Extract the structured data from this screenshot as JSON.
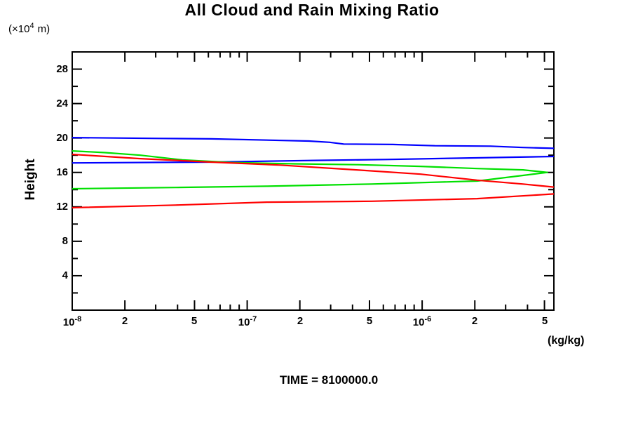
{
  "title": "All Cloud and Rain Mixing Ratio",
  "y_axis": {
    "label": "Height",
    "unit_prefix": "(×10",
    "unit_exp": "4",
    "unit_suffix": "m)",
    "labels": [
      {
        "text": "4",
        "value": 4
      },
      {
        "text": "8",
        "value": 8
      },
      {
        "text": "12",
        "value": 12
      },
      {
        "text": "16",
        "value": 16
      },
      {
        "text": "20",
        "value": 20
      },
      {
        "text": "24",
        "value": 24
      },
      {
        "text": "28",
        "value": 28
      }
    ]
  },
  "x_axis": {
    "unit": "(kg/kg)",
    "labels": [
      {
        "text": "10",
        "exp": "-8",
        "value": 1e-08
      },
      {
        "text": "2",
        "exp": "",
        "value": 2e-08
      },
      {
        "text": "5",
        "exp": "",
        "value": 5e-08
      },
      {
        "text": "10",
        "exp": "-7",
        "value": 1e-07
      },
      {
        "text": "2",
        "exp": "",
        "value": 2e-07
      },
      {
        "text": "5",
        "exp": "",
        "value": 5e-07
      },
      {
        "text": "10",
        "exp": "-6",
        "value": 1e-06
      },
      {
        "text": "2",
        "exp": "",
        "value": 2e-06
      },
      {
        "text": "5",
        "exp": "",
        "value": 5e-06
      }
    ]
  },
  "footer": {
    "time_label": "TIME = 8100000.0"
  },
  "chart_data": {
    "type": "line",
    "title": "All Cloud and Rain Mixing Ratio",
    "xlabel": "(kg/kg)",
    "ylabel": "Height (×10^4 m)",
    "x_scale": "log",
    "xlim": [
      1e-08,
      5.66e-06
    ],
    "ylim": [
      0,
      30
    ],
    "grid": false,
    "legend": "none",
    "annotation": "TIME = 8100000.0",
    "x_ticks_labeled": [
      1e-08,
      2e-08,
      5e-08,
      1e-07,
      2e-07,
      5e-07,
      1e-06,
      2e-06,
      5e-06
    ],
    "x_ticks_all": [
      1e-08,
      2e-08,
      3e-08,
      4e-08,
      5e-08,
      6e-08,
      7e-08,
      8e-08,
      9e-08,
      1e-07,
      2e-07,
      3e-07,
      4e-07,
      5e-07,
      6e-07,
      7e-07,
      8e-07,
      9e-07,
      1e-06,
      2e-06,
      3e-06,
      4e-06,
      5e-06
    ],
    "y_ticks_labeled": [
      4,
      8,
      12,
      16,
      20,
      24,
      28
    ],
    "y_ticks_all": [
      2,
      4,
      6,
      8,
      10,
      12,
      14,
      16,
      18,
      20,
      22,
      24,
      26,
      28
    ],
    "series": [
      {
        "name": "blue-upper-branch",
        "color": "#0000ff",
        "points": [
          [
            1e-08,
            20.05
          ],
          [
            3.2e-08,
            19.95
          ],
          [
            6.2e-08,
            19.9
          ],
          [
            2.25e-07,
            19.65
          ],
          [
            2.96e-07,
            19.5
          ],
          [
            3.56e-07,
            19.3
          ],
          [
            6.8e-07,
            19.25
          ],
          [
            1.18e-06,
            19.1
          ],
          [
            2.46e-06,
            19.05
          ],
          [
            3.77e-06,
            18.9
          ],
          [
            5.66e-06,
            18.8
          ]
        ]
      },
      {
        "name": "blue-lower-branch",
        "color": "#0000ff",
        "points": [
          [
            1e-08,
            17.1
          ],
          [
            6.2e-08,
            17.2
          ],
          [
            2.46e-07,
            17.4
          ],
          [
            6.2e-07,
            17.5
          ],
          [
            1.56e-06,
            17.65
          ],
          [
            5.66e-06,
            17.85
          ]
        ]
      },
      {
        "name": "green-profile",
        "color": "#00e000",
        "points": [
          [
            1e-08,
            18.5
          ],
          [
            1.54e-08,
            18.3
          ],
          [
            2.45e-08,
            18.0
          ],
          [
            4.26e-08,
            17.45
          ],
          [
            8.1e-08,
            17.15
          ],
          [
            1.87e-07,
            17.0
          ],
          [
            4.28e-07,
            16.9
          ],
          [
            9.8e-07,
            16.7
          ],
          [
            2.06e-06,
            16.45
          ],
          [
            3.77e-06,
            16.3
          ],
          [
            5.2e-06,
            16.0
          ],
          [
            3.77e-06,
            15.65
          ],
          [
            2.06e-06,
            15.0
          ],
          [
            5.15e-07,
            14.65
          ],
          [
            1.29e-07,
            14.4
          ],
          [
            3.9e-08,
            14.25
          ],
          [
            1e-08,
            14.1
          ]
        ]
      },
      {
        "name": "red-upper-branch",
        "color": "#ff0000",
        "points": [
          [
            1e-08,
            18.1
          ],
          [
            2.45e-08,
            17.6
          ],
          [
            6.2e-08,
            17.2
          ],
          [
            1.55e-07,
            16.85
          ],
          [
            4.2e-07,
            16.3
          ],
          [
            9.8e-07,
            15.8
          ],
          [
            2.06e-06,
            15.1
          ],
          [
            3.77e-06,
            14.65
          ],
          [
            5.66e-06,
            14.3
          ]
        ]
      },
      {
        "name": "red-lower-branch",
        "color": "#ff0000",
        "points": [
          [
            1e-08,
            11.9
          ],
          [
            3.9e-08,
            12.2
          ],
          [
            1.29e-07,
            12.55
          ],
          [
            5.15e-07,
            12.65
          ],
          [
            2.06e-06,
            12.95
          ],
          [
            5.66e-06,
            13.5
          ]
        ]
      }
    ]
  }
}
